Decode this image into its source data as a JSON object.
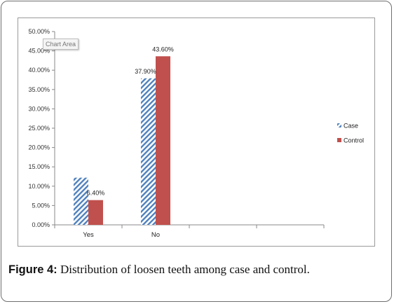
{
  "chart_data": {
    "type": "bar",
    "categories": [
      "Yes",
      "No",
      "",
      ""
    ],
    "series": [
      {
        "name": "Case",
        "values": [
          12.2,
          37.9,
          null,
          null
        ],
        "labels": [
          "",
          "37.90%",
          "",
          ""
        ]
      },
      {
        "name": "Control",
        "values": [
          6.4,
          43.6,
          null,
          null
        ],
        "labels": [
          "6.40%",
          "43.60%",
          "",
          ""
        ]
      }
    ],
    "ylim": [
      0,
      50
    ],
    "yticks": [
      "0.00%",
      "5.00%",
      "10.00%",
      "15.00%",
      "20.00%",
      "25.00%",
      "30.00%",
      "35.00%",
      "40.00%",
      "45.00%",
      "50.00%"
    ],
    "legend": "right",
    "grid": false,
    "colors": {
      "case": "#4f81bd",
      "control": "#c0504d"
    }
  },
  "tooltip": "Chart Area",
  "caption": {
    "label": "Figure 4:",
    "text": " Distribution of loosen teeth among case and control."
  }
}
